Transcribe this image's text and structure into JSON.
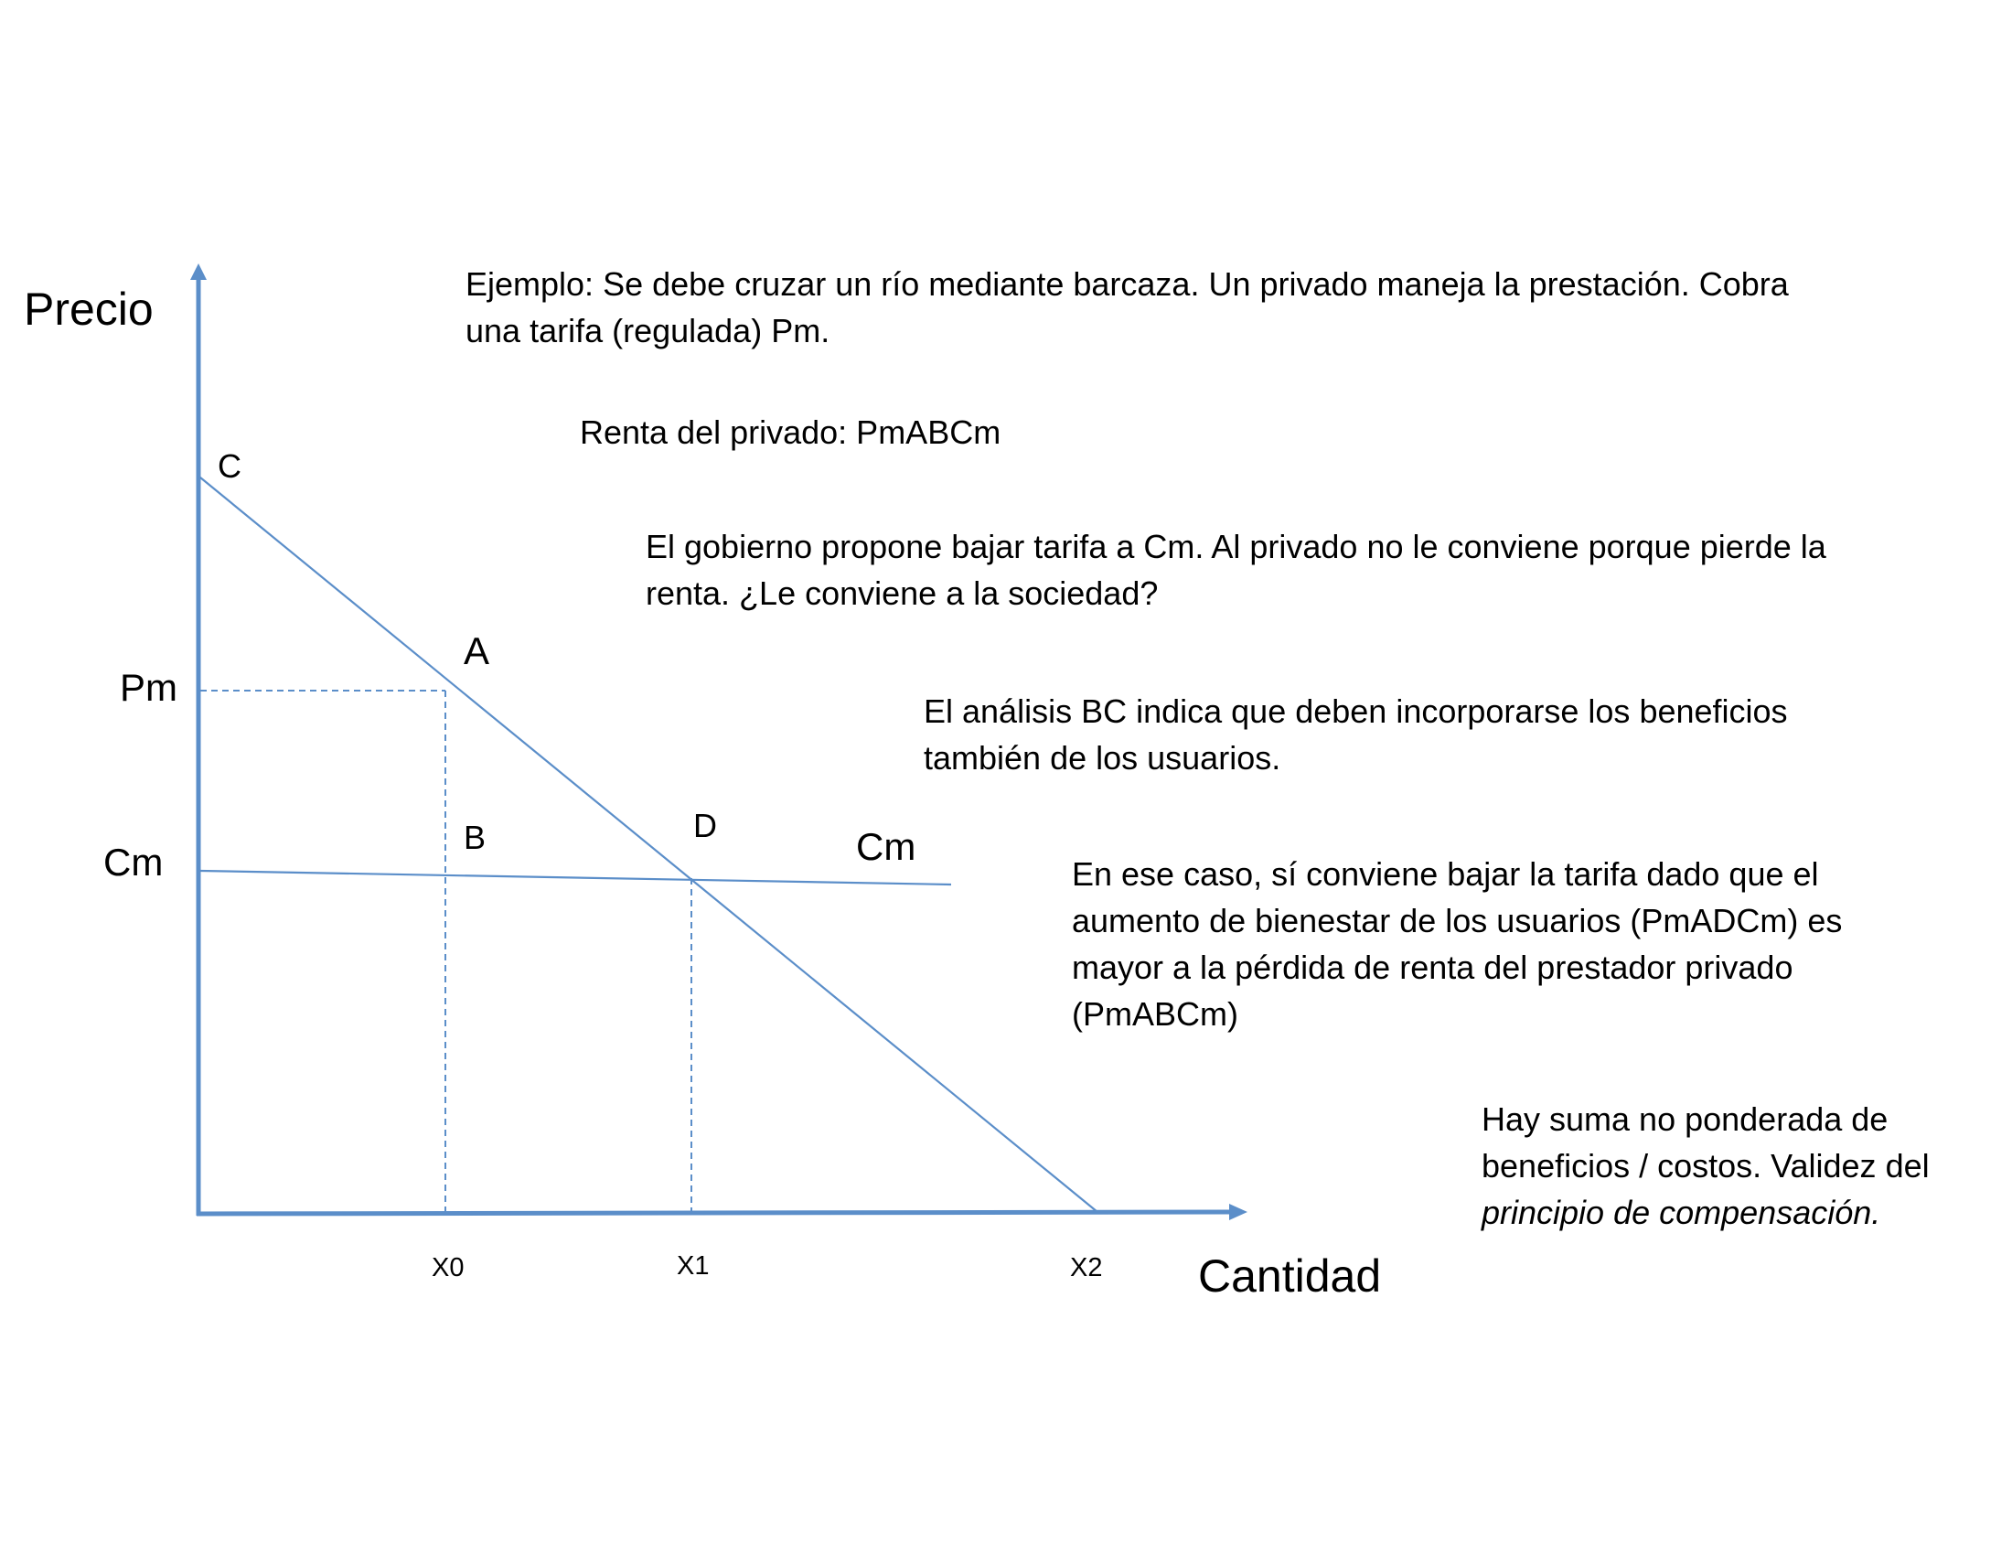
{
  "colors": {
    "axis": "#5b8ec9",
    "lines": "#5b8ec9",
    "text": "#000000",
    "background": "#ffffff"
  },
  "axes": {
    "y_label": "Precio",
    "x_label": "Cantidad"
  },
  "points": {
    "c": "C",
    "a": "A",
    "b": "B",
    "d": "D"
  },
  "price_labels": {
    "pm": "Pm",
    "cm": "Cm"
  },
  "cm_line_label": "Cm",
  "quantity_labels": {
    "x0": "X0",
    "x1": "X1",
    "x2": "X2"
  },
  "notes": {
    "example": {
      "line1": "Ejemplo: Se debe cruzar un río mediante barcaza. Un privado maneja la prestación. Cobra",
      "line2": "una tarifa (regulada) Pm."
    },
    "rent": "Renta del privado: PmABCm",
    "government": {
      "line1": "El gobierno propone bajar tarifa a Cm. Al privado no le conviene porque pierde la",
      "line2": "renta. ¿Le conviene a la sociedad?"
    },
    "analysis": {
      "line1": "El análisis BC indica que deben incorporarse los beneficios",
      "line2": "también de los usuarios."
    },
    "conclusion": {
      "line1": "En ese caso, sí conviene bajar la tarifa dado que el",
      "line2": "aumento de bienestar de los usuarios (PmADCm) es",
      "line3": "mayor a la pérdida de renta del prestador privado",
      "line4": "(PmABCm)"
    },
    "compensation": {
      "line1": "Hay suma no ponderada de",
      "line2": "beneficios / costos. Validez del",
      "line3": "principio de compensación."
    }
  }
}
